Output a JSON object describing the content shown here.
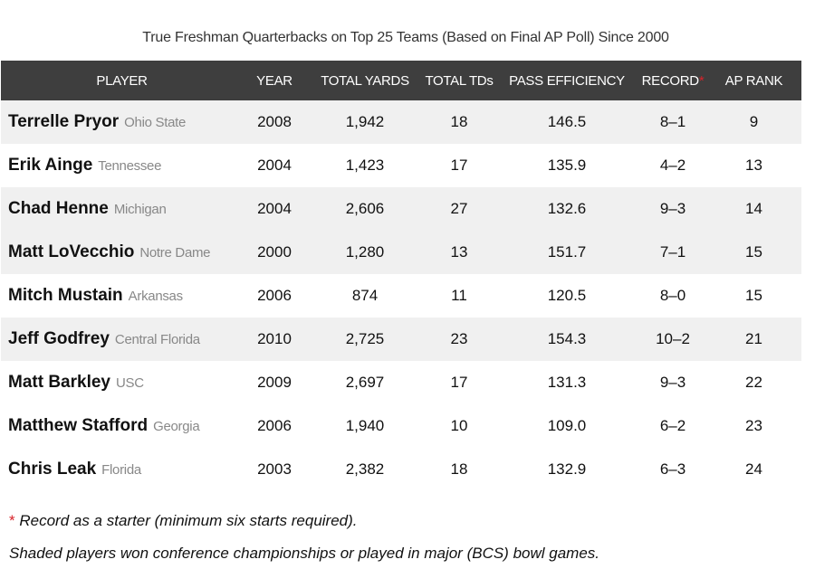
{
  "title": "True Freshman Quarterbacks on Top 25 Teams (Based on Final AP Poll) Since 2000",
  "headers": {
    "player": "PLAYER",
    "year": "YEAR",
    "total_yards": "TOTAL YARDS",
    "total_tds": "TOTAL TDs",
    "pass_efficiency": "PASS EFFICIENCY",
    "record": "RECORD",
    "record_marker": "*",
    "ap_rank": "AP RANK"
  },
  "rows": [
    {
      "name": "Terrelle Pryor",
      "team": "Ohio State",
      "year": "2008",
      "yards": "1,942",
      "tds": "18",
      "eff": "146.5",
      "record": "8–1",
      "rank": "9",
      "shaded": true
    },
    {
      "name": "Erik Ainge",
      "team": "Tennessee",
      "year": "2004",
      "yards": "1,423",
      "tds": "17",
      "eff": "135.9",
      "record": "4–2",
      "rank": "13",
      "shaded": false
    },
    {
      "name": "Chad Henne",
      "team": "Michigan",
      "year": "2004",
      "yards": "2,606",
      "tds": "27",
      "eff": "132.6",
      "record": "9–3",
      "rank": "14",
      "shaded": true
    },
    {
      "name": "Matt LoVecchio",
      "team": "Notre Dame",
      "year": "2000",
      "yards": "1,280",
      "tds": "13",
      "eff": "151.7",
      "record": "7–1",
      "rank": "15",
      "shaded": true
    },
    {
      "name": "Mitch Mustain",
      "team": "Arkansas",
      "year": "2006",
      "yards": "874",
      "tds": "11",
      "eff": "120.5",
      "record": "8–0",
      "rank": "15",
      "shaded": false
    },
    {
      "name": "Jeff Godfrey",
      "team": "Central Florida",
      "year": "2010",
      "yards": "2,725",
      "tds": "23",
      "eff": "154.3",
      "record": "10–2",
      "rank": "21",
      "shaded": true
    },
    {
      "name": "Matt Barkley",
      "team": "USC",
      "year": "2009",
      "yards": "2,697",
      "tds": "17",
      "eff": "131.3",
      "record": "9–3",
      "rank": "22",
      "shaded": false
    },
    {
      "name": "Matthew Stafford",
      "team": "Georgia",
      "year": "2006",
      "yards": "1,940",
      "tds": "10",
      "eff": "109.0",
      "record": "6–2",
      "rank": "23",
      "shaded": false
    },
    {
      "name": "Chris Leak",
      "team": "Florida",
      "year": "2003",
      "yards": "2,382",
      "tds": "18",
      "eff": "132.9",
      "record": "6–3",
      "rank": "24",
      "shaded": false
    }
  ],
  "footnotes": {
    "record_marker": "*",
    "record_note": " Record as a starter (minimum six starts required).",
    "shading_note": "Shaded players won conference championships or played in major (BCS) bowl games."
  },
  "colors": {
    "header_bg": "#3e3e3e",
    "shaded_row": "#f0f0f0",
    "accent_red": "#d8232a",
    "team_gray": "#888888"
  }
}
